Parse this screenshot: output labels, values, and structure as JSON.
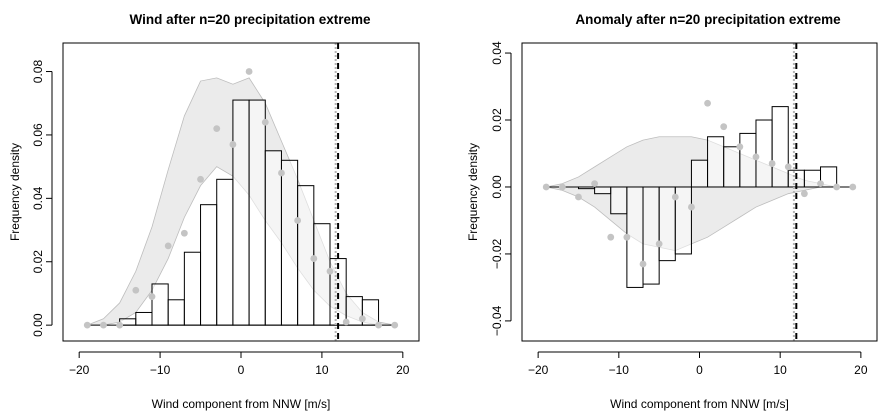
{
  "chart_data": [
    {
      "type": "bar",
      "title": "Wind after n=20 precipitation extreme",
      "xlabel": "Wind component from NNW [m/s]",
      "ylabel": "Frequency density",
      "xlim": [
        -22,
        22
      ],
      "ylim": [
        -0.005,
        0.089
      ],
      "xticks": [
        -20,
        -10,
        0,
        10,
        20
      ],
      "yticks": [
        0.0,
        0.02,
        0.04,
        0.06,
        0.08
      ],
      "ytick_labels": [
        "0.00",
        "0.02",
        "0.04",
        "0.06",
        "0.08"
      ],
      "bin_edges": [
        -19,
        -17,
        -15,
        -13,
        -11,
        -9,
        -7,
        -5,
        -3,
        -1,
        1,
        3,
        5,
        7,
        9,
        11,
        13,
        15,
        17,
        19
      ],
      "values": [
        0,
        0,
        0.002,
        0.004,
        0.013,
        0.008,
        0.023,
        0.038,
        0.046,
        0.071,
        0.071,
        0.055,
        0.052,
        0.044,
        0.032,
        0.021,
        0.009,
        0.008,
        0,
        0
      ],
      "points": {
        "x": [
          -19,
          -17,
          -15,
          -13,
          -11,
          -9,
          -7,
          -5,
          -3,
          -1,
          1,
          3,
          5,
          7,
          9,
          11,
          13,
          15,
          17,
          19
        ],
        "y": [
          0.0,
          0.0,
          0.0,
          0.011,
          0.009,
          0.025,
          0.029,
          0.046,
          0.062,
          0.057,
          0.08,
          0.064,
          0.048,
          0.033,
          0.021,
          0.017,
          0.001,
          0.002,
          0.0,
          0.0
        ],
        "color": "#c4c4c4"
      },
      "band": {
        "x": [
          -19,
          -17,
          -15,
          -13,
          -11,
          -9,
          -7,
          -5,
          -3,
          -1,
          1,
          3,
          5,
          7,
          9,
          11,
          13,
          15,
          17,
          19
        ],
        "upper": [
          0.0,
          0.002,
          0.007,
          0.017,
          0.031,
          0.049,
          0.066,
          0.077,
          0.078,
          0.076,
          0.078,
          0.07,
          0.058,
          0.046,
          0.033,
          0.02,
          0.01,
          0.004,
          0.001,
          0.0
        ],
        "lower": [
          0.0,
          0.0,
          0.001,
          0.004,
          0.011,
          0.021,
          0.034,
          0.044,
          0.05,
          0.047,
          0.041,
          0.033,
          0.026,
          0.018,
          0.011,
          0.006,
          0.003,
          0.001,
          0.0,
          0.0
        ],
        "color": "#ebebeb"
      },
      "threshold_x": 12,
      "reference_x": 11.7,
      "grid": false,
      "legend": "none"
    },
    {
      "type": "bar",
      "title": "Anomaly after n=20 precipitation extreme",
      "xlabel": "Wind component from NNW [m/s]",
      "ylabel": "Frequency density",
      "xlim": [
        -22,
        22
      ],
      "ylim": [
        -0.046,
        0.043
      ],
      "xticks": [
        -20,
        -10,
        0,
        10,
        20
      ],
      "yticks": [
        -0.04,
        -0.02,
        0.0,
        0.02,
        0.04
      ],
      "ytick_labels": [
        "−0.04",
        "−0.02",
        "0.00",
        "0.02",
        "0.04"
      ],
      "bin_edges": [
        -19,
        -17,
        -15,
        -13,
        -11,
        -9,
        -7,
        -5,
        -3,
        -1,
        1,
        3,
        5,
        7,
        9,
        11,
        13,
        15,
        17,
        19
      ],
      "values": [
        0,
        0,
        -0.0005,
        -0.002,
        -0.008,
        -0.03,
        -0.029,
        -0.022,
        -0.02,
        0.008,
        0.015,
        0.012,
        0.016,
        0.02,
        0.024,
        0.005,
        0.005,
        0.006,
        0,
        0
      ],
      "points": {
        "x": [
          -19,
          -17,
          -15,
          -13,
          -11,
          -9,
          -7,
          -5,
          -3,
          -1,
          1,
          3,
          5,
          7,
          9,
          11,
          13,
          15,
          17,
          19
        ],
        "y": [
          0.0,
          0.0,
          -0.003,
          0.001,
          -0.015,
          -0.015,
          -0.023,
          -0.017,
          -0.003,
          -0.006,
          0.025,
          0.018,
          0.012,
          0.009,
          0.007,
          0.006,
          -0.002,
          0.001,
          0.0,
          0.0
        ],
        "color": "#c4c4c4"
      },
      "band": {
        "x": [
          -19,
          -17,
          -15,
          -13,
          -11,
          -9,
          -7,
          -5,
          -3,
          -1,
          1,
          3,
          5,
          7,
          9,
          11,
          13,
          15,
          17,
          19
        ],
        "upper": [
          0.0,
          0.001,
          0.003,
          0.006,
          0.009,
          0.012,
          0.014,
          0.015,
          0.015,
          0.015,
          0.014,
          0.012,
          0.01,
          0.008,
          0.006,
          0.004,
          0.002,
          0.001,
          0.0,
          0.0
        ],
        "lower": [
          0.0,
          -0.001,
          -0.003,
          -0.006,
          -0.01,
          -0.014,
          -0.017,
          -0.018,
          -0.019,
          -0.017,
          -0.015,
          -0.012,
          -0.009,
          -0.006,
          -0.004,
          -0.002,
          -0.001,
          0.0,
          0.0,
          0.0
        ],
        "color": "#ebebeb"
      },
      "threshold_x": 12,
      "reference_x": 11.7,
      "zero_line": true,
      "grid": false,
      "legend": "none"
    }
  ]
}
